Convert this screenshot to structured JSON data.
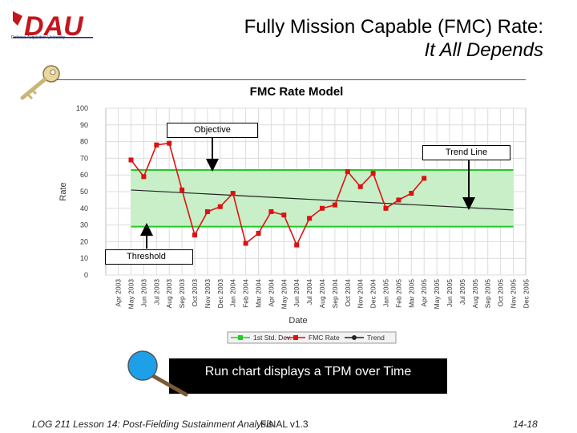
{
  "slide": {
    "logo_text": "DAU",
    "logo_subtext": "Defense Acquisition University",
    "title_line1": "Fully Mission Capable (FMC) Rate:",
    "title_line2": "It All Depends",
    "banner": "Run chart displays a TPM over Time",
    "footer_left": "LOG 211 Lesson 14: Post-Fielding Sustainment Analysis",
    "footer_center": "FINAL v1.3",
    "footer_right": "14-18"
  },
  "callouts": {
    "objective": "Objective",
    "trend": "Trend Line",
    "threshold": "Threshold"
  },
  "colors": {
    "band_fill": "#c8efc8",
    "band_line": "#22cc22",
    "series": "#dd1111",
    "trend": "#222222",
    "grid": "#dcdcdc"
  },
  "chart_data": {
    "type": "line",
    "title": "FMC Rate Model",
    "xlabel": "Date",
    "ylabel": "Rate",
    "ylim": [
      0,
      100
    ],
    "yticks": [
      0,
      10,
      20,
      30,
      40,
      50,
      60,
      70,
      80,
      90,
      100
    ],
    "categories": [
      "Apr 2003",
      "May 2003",
      "Jun 2003",
      "Jul 2003",
      "Aug 2003",
      "Sep 2003",
      "Oct 2003",
      "Nov 2003",
      "Dec 2003",
      "Jan 2004",
      "Feb 2004",
      "Mar 2004",
      "Apr 2004",
      "May 2004",
      "Jun 2004",
      "Jul 2004",
      "Aug 2004",
      "Sep 2004",
      "Oct 2004",
      "Nov 2004",
      "Dec 2004",
      "Jan 2005",
      "Feb 2005",
      "Mar 2005",
      "Apr 2005",
      "May 2005",
      "Jun 2005",
      "Jul 2005",
      "Aug 2005",
      "Sep 2005",
      "Oct 2005",
      "Nov 2005",
      "Dec 2005"
    ],
    "grid": true,
    "legend": "bottom",
    "series": [
      {
        "name": "1st Std. Dev.",
        "kind": "band",
        "upper": 63,
        "lower": 29,
        "from": "May 2003",
        "to": "Nov 2005"
      },
      {
        "name": "FMC Rate",
        "kind": "line",
        "x": [
          "May 2003",
          "Jun 2003",
          "Jul 2003",
          "Aug 2003",
          "Sep 2003",
          "Oct 2003",
          "Nov 2003",
          "Dec 2003",
          "Jan 2004",
          "Feb 2004",
          "Mar 2004",
          "Apr 2004",
          "May 2004",
          "Jun 2004",
          "Jul 2004",
          "Aug 2004",
          "Sep 2004",
          "Oct 2004",
          "Nov 2004",
          "Dec 2004",
          "Jan 2005",
          "Feb 2005",
          "Mar 2005",
          "Apr 2005"
        ],
        "values": [
          69,
          59,
          78,
          79,
          51,
          24,
          38,
          41,
          49,
          19,
          25,
          38,
          36,
          18,
          34,
          40,
          42,
          62,
          53,
          61,
          40,
          45,
          49,
          58
        ]
      },
      {
        "name": "Trend",
        "kind": "line",
        "x": [
          "May 2003",
          "Nov 2005"
        ],
        "values": [
          51,
          39
        ]
      }
    ]
  }
}
